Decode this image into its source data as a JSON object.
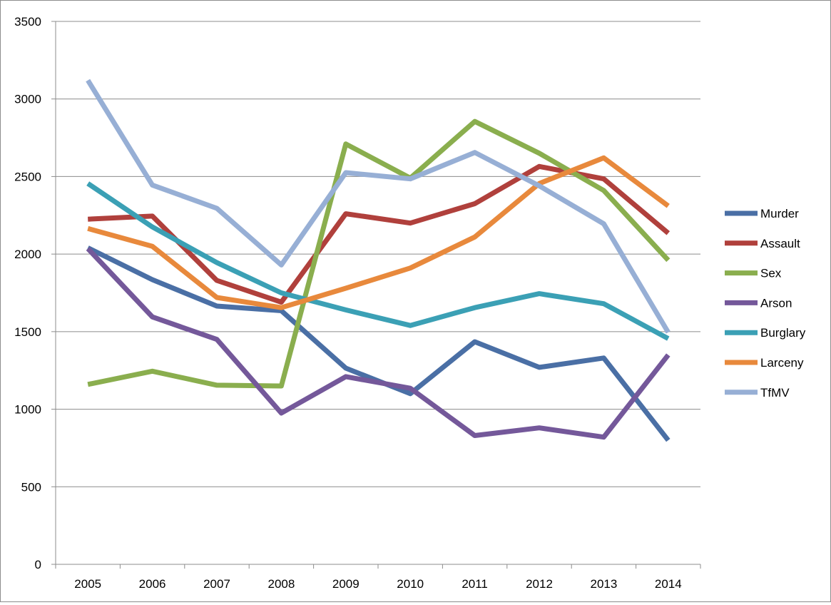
{
  "chart_data": {
    "type": "line",
    "title": "",
    "xlabel": "",
    "ylabel": "",
    "ylim": [
      0,
      3500
    ],
    "ytick_step": 500,
    "y_ticks": [
      "0",
      "500",
      "1000",
      "1500",
      "2000",
      "2500",
      "3000",
      "3500"
    ],
    "categories": [
      "2005",
      "2006",
      "2007",
      "2008",
      "2009",
      "2010",
      "2011",
      "2012",
      "2013",
      "2014"
    ],
    "grid": "horizontal",
    "legend_position": "right",
    "series": [
      {
        "name": "Murder",
        "color": "#4a6fa5",
        "values": [
          2040,
          1835,
          1665,
          1635,
          1265,
          1100,
          1435,
          1270,
          1330,
          800
        ]
      },
      {
        "name": "Assault",
        "color": "#b0403c",
        "values": [
          2225,
          2245,
          1830,
          1690,
          2260,
          2200,
          2325,
          2565,
          2485,
          2135
        ]
      },
      {
        "name": "Sex",
        "color": "#8aae4e",
        "values": [
          1160,
          1245,
          1155,
          1150,
          2710,
          2490,
          2855,
          2650,
          2410,
          1960
        ]
      },
      {
        "name": "Arson",
        "color": "#74589a",
        "values": [
          2035,
          1595,
          1450,
          975,
          1210,
          1135,
          830,
          880,
          820,
          1350
        ]
      },
      {
        "name": "Burglary",
        "color": "#3ba0b5",
        "values": [
          2455,
          2175,
          1945,
          1750,
          1640,
          1540,
          1655,
          1745,
          1680,
          1455
        ]
      },
      {
        "name": "Larceny",
        "color": "#e8893c",
        "values": [
          2165,
          2050,
          1720,
          1655,
          1780,
          1910,
          2110,
          2455,
          2620,
          2310
        ]
      },
      {
        "name": "TfMV",
        "color": "#97afd5",
        "values": [
          3120,
          2445,
          2295,
          1930,
          2525,
          2485,
          2655,
          2440,
          2195,
          1495
        ]
      }
    ]
  }
}
